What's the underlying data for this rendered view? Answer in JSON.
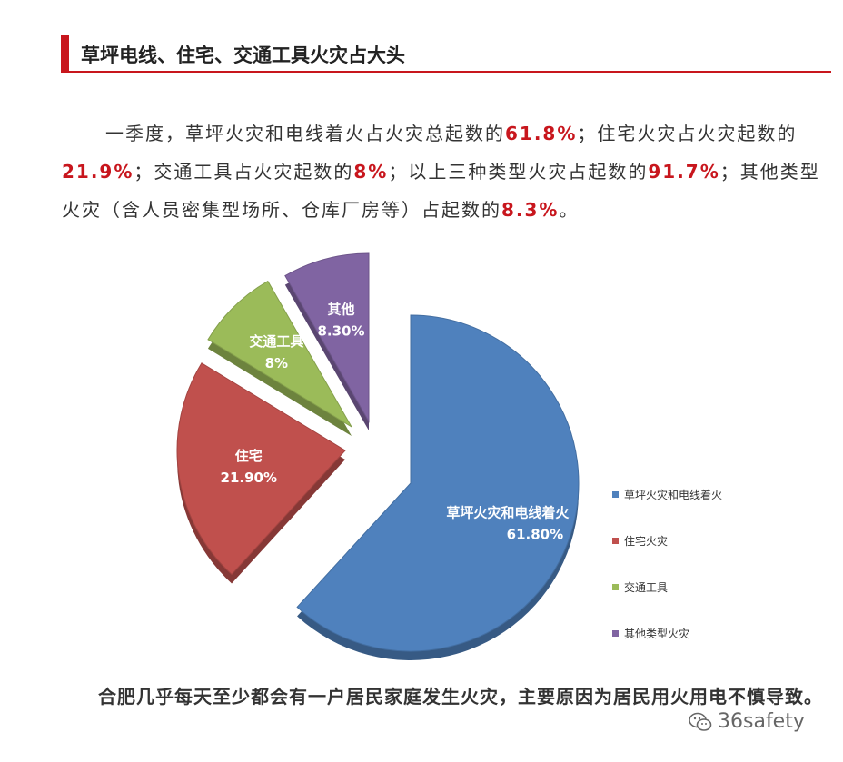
{
  "header": {
    "title": "草坪电线、住宅、交通工具火灾占大头"
  },
  "paragraph": {
    "t1": "一季度，草坪火灾和电线着火占火灾总起数的",
    "v1": "61.8%",
    "t2": "；住宅火灾占火灾起数的",
    "v2": "21.9%",
    "t3": "；交通工具占火灾起数的",
    "v3": "8%",
    "t4": "；以上三种类型火灾占起数的",
    "v4": "91.7%",
    "t5": "；其他类型火灾（含人员密集型场所、仓库厂房等）占起数的",
    "v5": "8.3%",
    "t6": "。"
  },
  "chart_data": {
    "type": "pie",
    "title": "",
    "slices": [
      {
        "label": "草坪火灾和电线着火",
        "value": 61.8,
        "value_label": "61.80%",
        "color": "#4f81bd"
      },
      {
        "label": "住宅",
        "value": 21.9,
        "value_label": "21.90%",
        "color": "#c0504d"
      },
      {
        "label": "交通工具",
        "value": 8,
        "value_label": "8%",
        "color": "#9bbb59"
      },
      {
        "label": "其他",
        "value": 8.3,
        "value_label": "8.30%",
        "color": "#8064a2"
      }
    ],
    "legend": {
      "placement": "right",
      "entries": [
        "草坪火灾和电线着火",
        "住宅火灾",
        "交通工具",
        "其他类型火灾"
      ]
    },
    "exploded": true,
    "style": "3d"
  },
  "bottom_text": "合肥几乎每天至少都会有一户居民家庭发生火灾，主要原因为居民用火用电不慎导致。",
  "watermark": {
    "text": "36safety",
    "icon": "wechat-icon"
  }
}
